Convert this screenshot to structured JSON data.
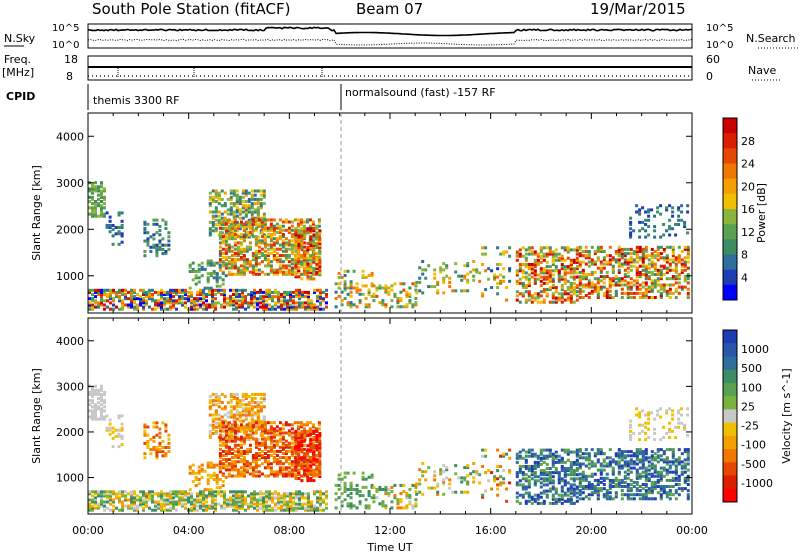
{
  "header": {
    "station": "South Pole Station (fitACF)",
    "beam": "Beam 07",
    "date": "19/Mar/2015"
  },
  "top_panel": {
    "left_label": "N.Sky",
    "left_ticks": [
      "10^5",
      "10^0"
    ],
    "right_label": "N.Search",
    "right_ticks": [
      "10^5",
      "10^0"
    ]
  },
  "freq_panel": {
    "left_label_line1": "Freq.",
    "left_label_line2": "[MHz]",
    "left_ticks": [
      "18",
      "8"
    ],
    "right_label": "Nave",
    "right_ticks": [
      "60",
      "0"
    ]
  },
  "cpid_panel": {
    "label": "CPID",
    "segments": [
      "themis 3300 RF",
      "normalsound (fast) -157 RF"
    ]
  },
  "colors": {
    "power_scale": [
      "#0000ff",
      "#1e3cb4",
      "#2e6e9a",
      "#3c8c64",
      "#5aa050",
      "#8cb43c",
      "#f0c000",
      "#f5a000",
      "#f07800",
      "#e64600",
      "#dc1e00",
      "#c80000"
    ],
    "velocity_scale": [
      "#1e3cb4",
      "#2a55a8",
      "#2e6e9a",
      "#3c8c64",
      "#5aa050",
      "#78b43c",
      "#c8c8c8",
      "#f0c000",
      "#f5a000",
      "#f07800",
      "#e64600",
      "#dc1e00",
      "#ff0000"
    ]
  },
  "chart_data": [
    {
      "type": "heatmap",
      "name": "power",
      "ylabel": "Slant Range [km]",
      "yticks": [
        "1000",
        "2000",
        "3000",
        "4000"
      ],
      "ylim": [
        200,
        4500
      ],
      "colorbar_label": "Power [dB]",
      "colorbar_ticks": [
        "4",
        "8",
        "12",
        "16",
        "20",
        "24",
        "28"
      ],
      "colorbar_range": [
        0,
        30
      ],
      "x": [
        "00:00",
        "04:00",
        "08:00",
        "12:00",
        "16:00",
        "20:00",
        "00:00"
      ],
      "xlim_hours": [
        0,
        24
      ]
    },
    {
      "type": "heatmap",
      "name": "velocity",
      "ylabel": "Slant Range [km]",
      "yticks": [
        "1000",
        "2000",
        "3000",
        "4000"
      ],
      "ylim": [
        200,
        4500
      ],
      "colorbar_label": "Velocity [m s^-1]",
      "colorbar_ticks": [
        "1000",
        "500",
        "100",
        "25",
        "-25",
        "-100",
        "-500",
        "-1000"
      ],
      "x": [
        "00:00",
        "04:00",
        "08:00",
        "12:00",
        "16:00",
        "20:00",
        "00:00"
      ],
      "xlabel": "Time UT",
      "xlim_hours": [
        0,
        24
      ]
    }
  ]
}
